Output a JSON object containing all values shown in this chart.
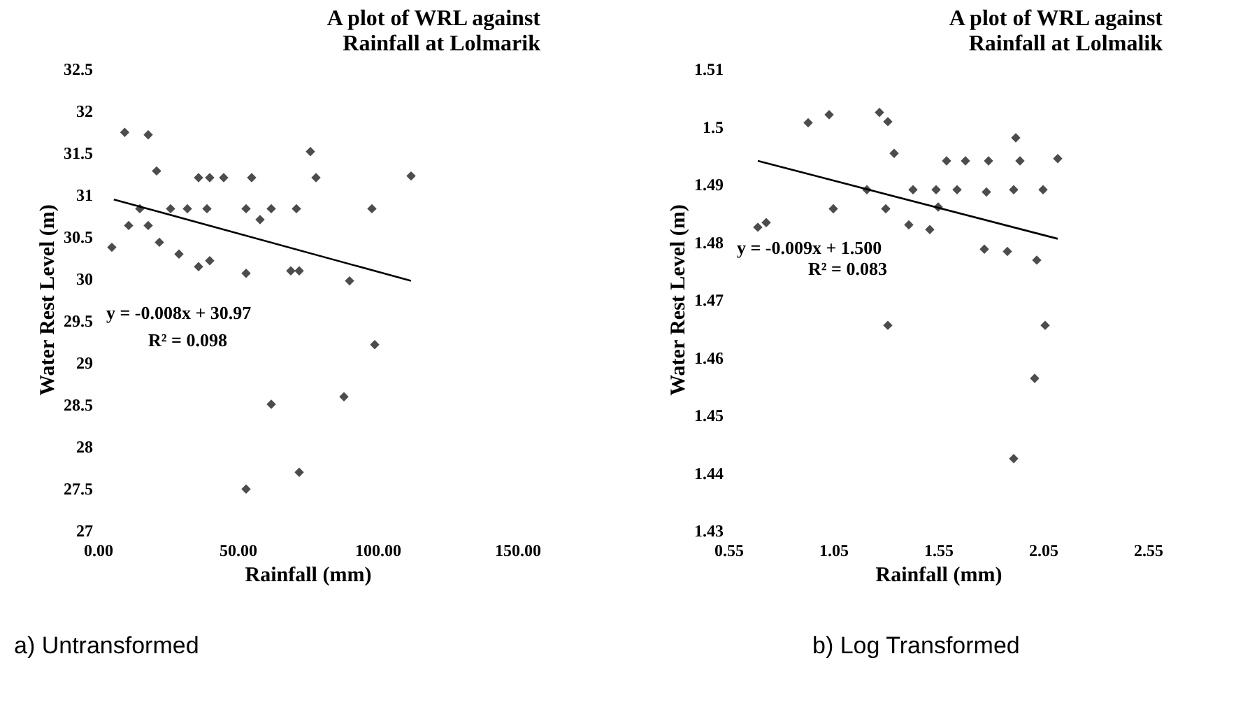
{
  "chart_data": [
    {
      "type": "scatter",
      "title": "A plot of WRL against Rainfall at Lolmarik",
      "xlabel": "Rainfall (mm)",
      "ylabel": "Water Rest Level (m)",
      "xlim": [
        0,
        150
      ],
      "xticks": [
        {
          "value": 0,
          "label": "0.00"
        },
        {
          "value": 50,
          "label": "50.00"
        },
        {
          "value": 100,
          "label": "100.00"
        },
        {
          "value": 150,
          "label": "150.00"
        }
      ],
      "ylim": [
        27,
        32.5
      ],
      "yticks": [
        27,
        27.5,
        28,
        28.5,
        29,
        29.5,
        30,
        30.5,
        31,
        31.5,
        32,
        32.5
      ],
      "grid": false,
      "series": [
        {
          "color": "#000000",
          "marker": "diamond",
          "x": [
            9.6,
            18,
            21,
            36,
            40,
            45,
            55,
            76,
            78,
            112,
            15,
            26,
            32,
            39,
            53,
            62,
            71,
            98,
            11,
            5,
            18,
            22,
            29,
            36,
            40,
            53,
            58,
            69,
            72,
            90,
            99,
            88,
            62,
            72,
            53
          ],
          "values": [
            31.74,
            31.71,
            31.28,
            31.2,
            31.2,
            31.2,
            31.2,
            31.51,
            31.2,
            31.22,
            30.83,
            30.83,
            30.83,
            30.83,
            30.83,
            30.83,
            30.83,
            30.83,
            30.63,
            30.37,
            30.63,
            30.43,
            30.29,
            30.14,
            30.21,
            30.06,
            30.7,
            30.09,
            30.09,
            29.97,
            29.21,
            28.59,
            28.5,
            27.69,
            27.49
          ]
        },
        {
          "type": "line",
          "color": "#000000",
          "x": [
            5.7,
            112
          ],
          "values": [
            30.94,
            29.97
          ]
        }
      ],
      "annotations": [
        "y = -0.008x + 30.97",
        "R² = 0.098",
        "a)  Untransformed"
      ]
    },
    {
      "type": "scatter",
      "title": "A plot of WRL against Rainfall at Lolmalik",
      "xlabel": "Rainfall (mm)",
      "ylabel": "Water Rest Level (m)",
      "xlim": [
        0.55,
        2.55
      ],
      "xticks": [
        0.55,
        1.05,
        1.55,
        2.05,
        2.55
      ],
      "ylim": [
        1.43,
        1.51
      ],
      "yticks": [
        1.43,
        1.44,
        1.45,
        1.46,
        1.47,
        1.48,
        1.49,
        1.5,
        1.51
      ],
      "grid": false,
      "series": [
        {
          "color": "#000000",
          "marker": "diamond",
          "x": [
            0.69,
            0.73,
            0.93,
            1.03,
            1.27,
            1.31,
            1.34,
            1.05,
            1.21,
            1.3,
            1.41,
            1.51,
            1.43,
            1.54,
            1.64,
            1.59,
            1.68,
            1.79,
            1.78,
            1.91,
            2.05,
            1.92,
            1.94,
            2.12,
            1.77,
            1.88,
            2.02,
            1.31,
            2.06,
            2.01,
            1.91,
            1.55
          ],
          "values": [
            1.4825,
            1.4833,
            1.5006,
            1.502,
            1.5024,
            1.5008,
            1.4953,
            1.4857,
            1.489,
            1.4857,
            1.4829,
            1.4821,
            1.489,
            1.489,
            1.489,
            1.494,
            1.494,
            1.494,
            1.4886,
            1.489,
            1.489,
            1.498,
            1.494,
            1.4944,
            1.4787,
            1.4783,
            1.4768,
            1.4655,
            1.4655,
            1.4563,
            1.4424,
            1.486
          ]
        },
        {
          "type": "line",
          "color": "#000000",
          "x": [
            0.69,
            2.12
          ],
          "values": [
            1.494,
            1.4805
          ]
        }
      ],
      "annotations": [
        "y = -0.009x + 1.500",
        "R² = 0.083",
        "b) Log Transformed"
      ]
    }
  ]
}
